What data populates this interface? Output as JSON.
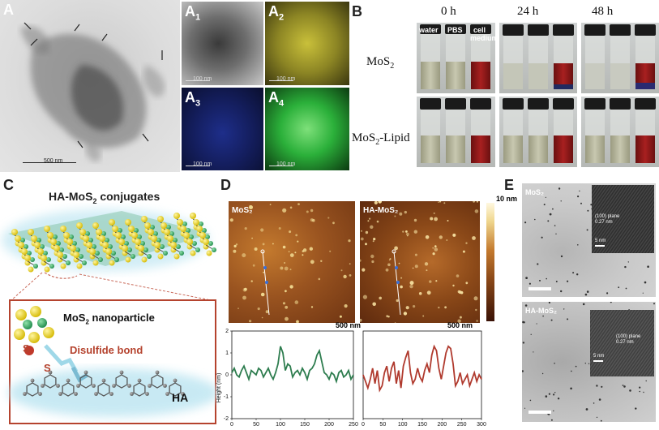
{
  "panels": {
    "A": {
      "label": "A",
      "scale": "500 nm",
      "subs": [
        {
          "main": "A",
          "sub": "1",
          "scale": "100 nm"
        },
        {
          "main": "A",
          "sub": "2",
          "scale": "100 nm"
        },
        {
          "main": "A",
          "sub": "3",
          "scale": "100 nm"
        },
        {
          "main": "A",
          "sub": "4",
          "scale": "100 nm"
        }
      ]
    },
    "B": {
      "label": "B",
      "times": [
        "0 h",
        "24 h",
        "48 h"
      ],
      "vials": [
        "water",
        "PBS",
        "cell",
        "medium"
      ],
      "rows": [
        {
          "main": "MoS",
          "sub": "2",
          "tail": ""
        },
        {
          "main": "MoS",
          "sub": "2",
          "tail": "-Lipid"
        }
      ]
    },
    "C": {
      "label": "C",
      "title_main": "HA-MoS",
      "title_sub": "2",
      "title_tail": " conjugates",
      "box_title_main": "MoS",
      "box_title_sub": "2",
      "box_title_tail": " nanoparticle",
      "bond": "Disulfide bond",
      "s1": "S",
      "s2": "S",
      "ha": "HA"
    },
    "D": {
      "label": "D",
      "img1": "MoS₂",
      "img2": "HA-MoS₂",
      "colorbar": "10 nm",
      "scale1": "500 nm",
      "scale2": "500 nm",
      "ylabel": "Height (nm)"
    },
    "E": {
      "label": "E",
      "img1": "MoS₂",
      "img2": "HA-MoS₂",
      "inset1": [
        "(100) plane",
        "0.27 nm",
        "5 nm"
      ],
      "inset2": [
        "(100) plane",
        "0.27 nm",
        "5 nm"
      ]
    }
  },
  "chart_data": [
    {
      "type": "line",
      "ylabel": "Height (nm)",
      "xlim": [
        0,
        250
      ],
      "ylim": [
        -2,
        2
      ],
      "xticks": [
        0,
        50,
        100,
        150,
        200,
        250
      ],
      "yticks": [
        -2,
        -1,
        0,
        1,
        2
      ],
      "series": [
        {
          "color": "#2e7d4f",
          "x": [
            0,
            5,
            10,
            15,
            20,
            25,
            30,
            35,
            40,
            45,
            50,
            55,
            60,
            65,
            70,
            75,
            80,
            85,
            90,
            95,
            100,
            105,
            110,
            115,
            120,
            125,
            130,
            135,
            140,
            145,
            150,
            155,
            160,
            165,
            170,
            175,
            180,
            185,
            190,
            195,
            200,
            205,
            210,
            215,
            220,
            225,
            230,
            235,
            240,
            245,
            250
          ],
          "y": [
            0.1,
            0.3,
            0.0,
            -0.1,
            0.2,
            0.4,
            0.1,
            -0.2,
            0.2,
            0.1,
            0.0,
            0.3,
            0.2,
            -0.1,
            0.1,
            0.3,
            0.0,
            -0.2,
            0.1,
            0.5,
            1.3,
            1.0,
            0.2,
            0.5,
            0.4,
            -0.1,
            0.1,
            0.2,
            0.0,
            0.3,
            0.1,
            -0.2,
            0.2,
            0.3,
            0.5,
            0.9,
            1.1,
            0.6,
            0.1,
            0.0,
            -0.2,
            0.1,
            0.0,
            -0.3,
            0.1,
            0.2,
            -0.1,
            0.0,
            0.2,
            -0.2,
            0.0
          ]
        }
      ]
    },
    {
      "type": "line",
      "xlim": [
        0,
        300
      ],
      "ylim": [
        -2,
        2
      ],
      "xticks": [
        0,
        50,
        100,
        150,
        200,
        250,
        300
      ],
      "series": [
        {
          "color": "#b03a2e",
          "x": [
            0,
            6,
            12,
            18,
            24,
            30,
            36,
            42,
            48,
            54,
            60,
            66,
            72,
            78,
            84,
            90,
            96,
            102,
            108,
            114,
            120,
            126,
            132,
            138,
            144,
            150,
            156,
            162,
            168,
            174,
            180,
            186,
            192,
            198,
            204,
            210,
            216,
            222,
            228,
            234,
            240,
            246,
            252,
            258,
            264,
            270,
            276,
            282,
            288,
            294,
            300
          ],
          "y": [
            0.0,
            -0.3,
            -0.6,
            -0.2,
            0.3,
            -0.4,
            0.2,
            -0.7,
            -0.5,
            0.1,
            0.4,
            -0.3,
            0.3,
            0.6,
            -0.4,
            0.2,
            -0.6,
            0.4,
            0.8,
            1.1,
            0.1,
            -0.4,
            -0.2,
            0.3,
            -0.1,
            -0.3,
            0.2,
            0.5,
            0.1,
            0.9,
            1.3,
            1.1,
            0.3,
            -0.2,
            0.4,
            1.0,
            1.3,
            1.2,
            0.5,
            -0.5,
            -0.3,
            0.1,
            -0.4,
            -0.2,
            0.0,
            -0.5,
            -0.2,
            0.1,
            -0.3,
            0.0,
            -0.2
          ]
        }
      ]
    }
  ]
}
